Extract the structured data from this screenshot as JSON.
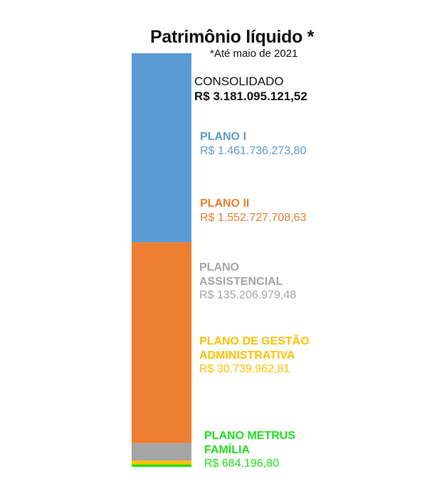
{
  "chart_data": {
    "type": "bar",
    "title": "Patrimônio líquido *",
    "subtitle": "*Até maio de 2021",
    "unit": "R$",
    "total": {
      "name": "CONSOLIDADO",
      "label": "R$ 3.181.095.121,52",
      "value": 3181095121.52
    },
    "series": [
      {
        "name": "PLANO I",
        "label": "R$ 1.461.736.273,80",
        "value": 1461736273.8,
        "color": "#5b9bd5"
      },
      {
        "name": "PLANO II",
        "label": "R$ 1.552.727.708,63",
        "value": 1552727708.63,
        "color": "#ed7d31"
      },
      {
        "name": "PLANO ASSISTENCIAL",
        "label": "R$ 135.206.979,48",
        "value": 135206979.48,
        "color": "#a5a5a5"
      },
      {
        "name": "PLANO DE GESTÃO ADMINISTRATIVA",
        "label": "R$ 30.739.962,81",
        "value": 30739962.81,
        "color": "#ffc000"
      },
      {
        "name": "PLANO METRUS FAMÍLIA",
        "label": "R$ 684.196,80",
        "value": 684196.8,
        "color": "#00e400"
      }
    ],
    "label_colors": [
      "#5b9bd5",
      "#ed7d31",
      "#a5a5a5",
      "#ffc000",
      "#22e022"
    ]
  }
}
